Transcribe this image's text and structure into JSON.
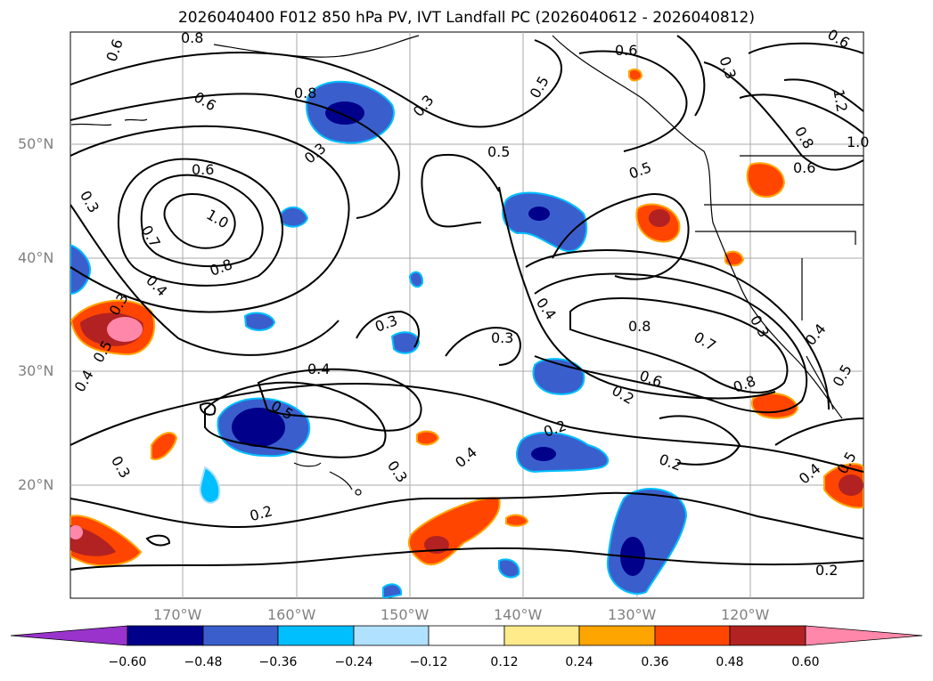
{
  "title": "2026040400 F012 850 hPa PV, IVT Landfall PC (2026040612 - 2026040812)",
  "axes": {
    "lat_labels": [
      "50°N",
      "40°N",
      "30°N",
      "20°N"
    ],
    "lon_labels": [
      "170°W",
      "160°W",
      "150°W",
      "140°W",
      "130°W",
      "120°W"
    ]
  },
  "colorbar": {
    "ticks": [
      "−0.60",
      "−0.48",
      "−0.36",
      "−0.24",
      "−0.12",
      "0.12",
      "0.24",
      "0.36",
      "0.48",
      "0.60"
    ],
    "colors": [
      "#9933CC",
      "#00008B",
      "#3A5FCD",
      "#00BFFF",
      "#B0E2FF",
      "#FFFFFF",
      "#FFEB8A",
      "#FFA500",
      "#FF4500",
      "#B22222",
      "#FF88AA"
    ]
  },
  "contour_labels": [
    "0.8",
    "0.6",
    "0.6",
    "0.8",
    "0.3",
    "0.5",
    "0.6",
    "0.5",
    "0.5",
    "0.6",
    "1.2",
    "0.8",
    "1.0",
    "0.6",
    "0.3",
    "1.0",
    "0.7",
    "0.8",
    "0.4",
    "0.3",
    "0.5",
    "0.4",
    "0.3",
    "0.3",
    "0.4",
    "0.8",
    "0.7",
    "0.6",
    "0.8",
    "0.3",
    "0.4",
    "0.5",
    "0.2",
    "0.4",
    "0.3",
    "0.2",
    "0.2",
    "0.2",
    "0.4",
    "0.5",
    "0.3",
    "0.5",
    "0.2",
    "0.3",
    "0.3",
    "0.4",
    "0.6"
  ],
  "colors": {
    "grid": "#aaaaaa",
    "contour": "#000000",
    "tick_text": "#808080"
  }
}
